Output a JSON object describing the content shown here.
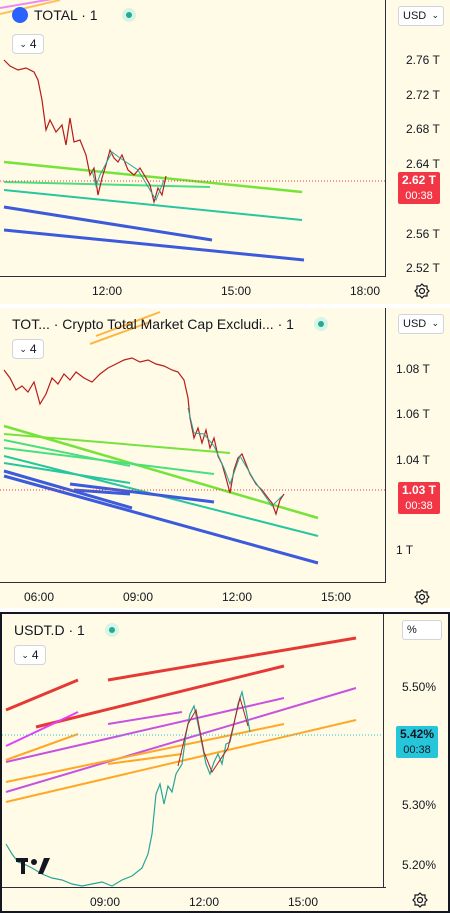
{
  "panes": [
    {
      "symbol": "TOTAL · 1",
      "indicator_count": "4",
      "currency": "USD",
      "price_ticks": [
        "2.76 T",
        "2.72 T",
        "2.68 T",
        "2.64 T",
        "2.56 T",
        "2.52 T"
      ],
      "last_price": "2.62 T",
      "countdown": "00:38",
      "time_ticks": [
        "12:00",
        "15:00",
        "18:00"
      ],
      "badge_color": "#f23645"
    },
    {
      "symbol": "TOT... · Crypto Total Market Cap Excludi... · 1",
      "indicator_count": "4",
      "currency": "USD",
      "price_ticks": [
        "1.08 T",
        "1.06 T",
        "1.04 T",
        "1 T"
      ],
      "last_price": "1.03 T",
      "countdown": "00:38",
      "time_ticks": [
        "06:00",
        "09:00",
        "12:00",
        "15:00"
      ],
      "badge_color": "#f23645"
    },
    {
      "symbol": "USDT.D · 1",
      "indicator_count": "4",
      "currency": "%",
      "price_ticks": [
        "5.50%",
        "5.30%",
        "5.20%"
      ],
      "last_price": "5.42%",
      "countdown": "00:38",
      "time_ticks": [
        "09:00",
        "12:00",
        "15:00"
      ],
      "badge_color": "#26c6da"
    }
  ],
  "icons": {
    "symbol_search": "tv-logo-icon",
    "settings": "gear-icon",
    "status": "market-open-dot-icon",
    "watermark": "tradingview-logo-icon"
  }
}
